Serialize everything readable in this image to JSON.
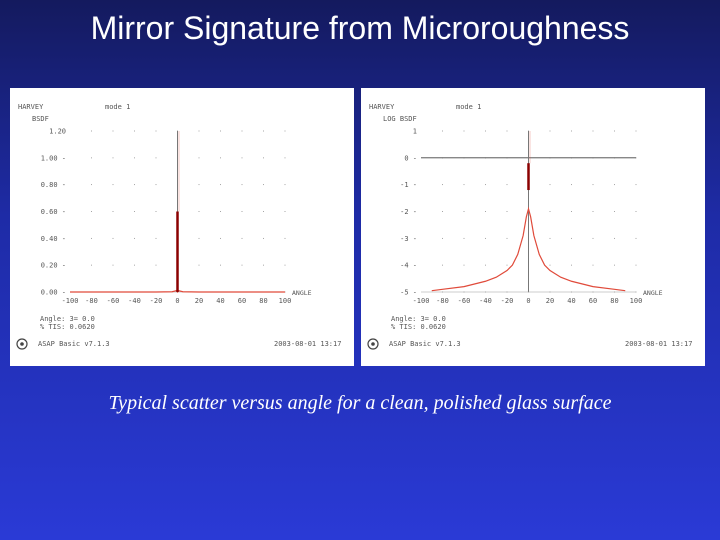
{
  "slide": {
    "title": "Mirror Signature from Microroughness",
    "caption": "Typical scatter versus angle for a clean, polished glass surface"
  },
  "colors": {
    "background_top": "#141a5e",
    "background_bottom": "#2a3ad6",
    "panel": "#ffffff",
    "curve": "#e04a3a",
    "specular": "#8b0000",
    "axis": "#404040"
  },
  "chart_data": [
    {
      "type": "line",
      "header_left": "HARVEY",
      "header_right": "mode 1",
      "ylabel": "BSDF",
      "xlabel": "ANGLE",
      "x_ticks": [
        "-100",
        "-80",
        "-60",
        "-40",
        "-20",
        "0",
        "20",
        "40",
        "60",
        "80",
        "100"
      ],
      "x_tick_values": [
        -100,
        -80,
        -60,
        -40,
        -20,
        0,
        20,
        40,
        60,
        80,
        100
      ],
      "y_ticks": [
        "1.20",
        "1.00",
        "0.80",
        "0.60",
        "0.40",
        "0.20",
        "0.00"
      ],
      "y_tick_values": [
        1.2,
        1.0,
        0.8,
        0.6,
        0.4,
        0.2,
        0.0
      ],
      "xlim": [
        -100,
        100
      ],
      "ylim": [
        0,
        1.2
      ],
      "grid": "dotted",
      "series": [
        {
          "values_x": [
            -100,
            -20,
            -5,
            -1,
            0,
            1,
            5,
            20,
            100
          ],
          "values_y": [
            0.0,
            0.0,
            0.002,
            0.01,
            0.0,
            0.01,
            0.002,
            0.0,
            0.0
          ]
        }
      ],
      "specular_peak": {
        "x": 0,
        "y": 0.6
      },
      "info_line_1": "Angle: 3=  0.0",
      "info_line_2": "% TIS:   0.0620",
      "footer_left": "ASAP Basic v7.1.3",
      "footer_right": "2003-08-01  13:17"
    },
    {
      "type": "line",
      "header_left": "HARVEY",
      "header_right": "mode 1",
      "ylabel": "LOG BSDF",
      "xlabel": "ANGLE",
      "x_ticks": [
        "-100",
        "-80",
        "-60",
        "-40",
        "-20",
        "0",
        "20",
        "40",
        "60",
        "80",
        "100"
      ],
      "x_tick_values": [
        -100,
        -80,
        -60,
        -40,
        -20,
        0,
        20,
        40,
        60,
        80,
        100
      ],
      "y_ticks": [
        "1",
        "0",
        "-1",
        "-2",
        "-3",
        "-4",
        "-5"
      ],
      "y_tick_values": [
        1,
        0,
        -1,
        -2,
        -3,
        -4,
        -5
      ],
      "xlim": [
        -100,
        100
      ],
      "ylim": [
        -5,
        1
      ],
      "grid": "dotted",
      "series": [
        {
          "values_x": [
            -90,
            -80,
            -60,
            -40,
            -30,
            -20,
            -15,
            -10,
            -5,
            -2,
            0,
            2,
            5,
            10,
            15,
            20,
            30,
            40,
            60,
            80,
            90
          ],
          "values_y": [
            -4.95,
            -4.9,
            -4.8,
            -4.6,
            -4.45,
            -4.2,
            -4.0,
            -3.6,
            -2.9,
            -2.2,
            -1.9,
            -2.2,
            -2.9,
            -3.6,
            -4.0,
            -4.2,
            -4.45,
            -4.6,
            -4.8,
            -4.9,
            -4.95
          ]
        }
      ],
      "specular_peak": {
        "x": 0,
        "y": -0.2,
        "base": -1.2
      },
      "info_line_1": "Angle: 3=  0.0",
      "info_line_2": "% TIS:   0.0620",
      "footer_left": "ASAP Basic v7.1.3",
      "footer_right": "2003-08-01  13:17"
    }
  ]
}
